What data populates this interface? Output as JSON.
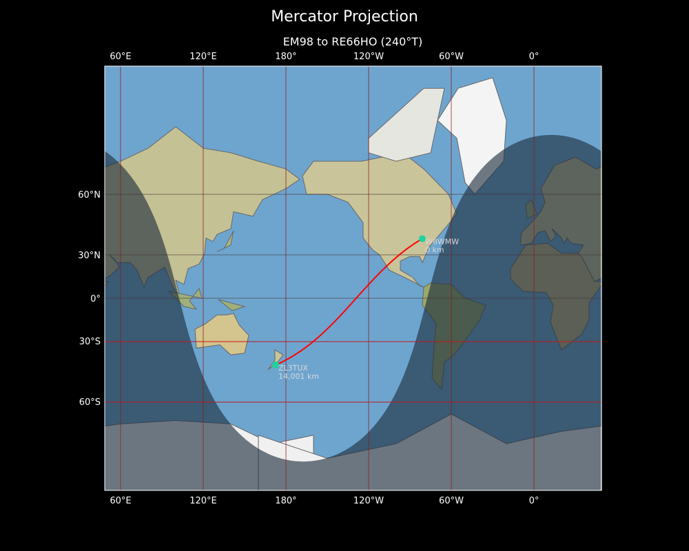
{
  "title": "Mercator Projection",
  "subtitle": "EM98 to RE66HO (240°T)",
  "map": {
    "projection": "Mercator",
    "lon_ticks": [
      "60°E",
      "120°E",
      "180°",
      "120°W",
      "60°W",
      "0°"
    ],
    "lat_ticks": [
      "60°N",
      "30°N",
      "0°",
      "30°S",
      "60°S"
    ],
    "colors": {
      "path": "#ff0000",
      "station": "#1fd3a0",
      "grid": "#8b1a1a",
      "night": "#1c2c3c"
    },
    "subsolar_point": {
      "lat": 14.4,
      "lon": -167.5
    }
  },
  "stations": [
    {
      "call": "W8WMW",
      "distance": "0 km",
      "lat": 39.6,
      "lon": -81.0
    },
    {
      "call": "ZL3TUX",
      "distance": "14,001 km",
      "lat": -43.5,
      "lon": 172.5
    }
  ]
}
